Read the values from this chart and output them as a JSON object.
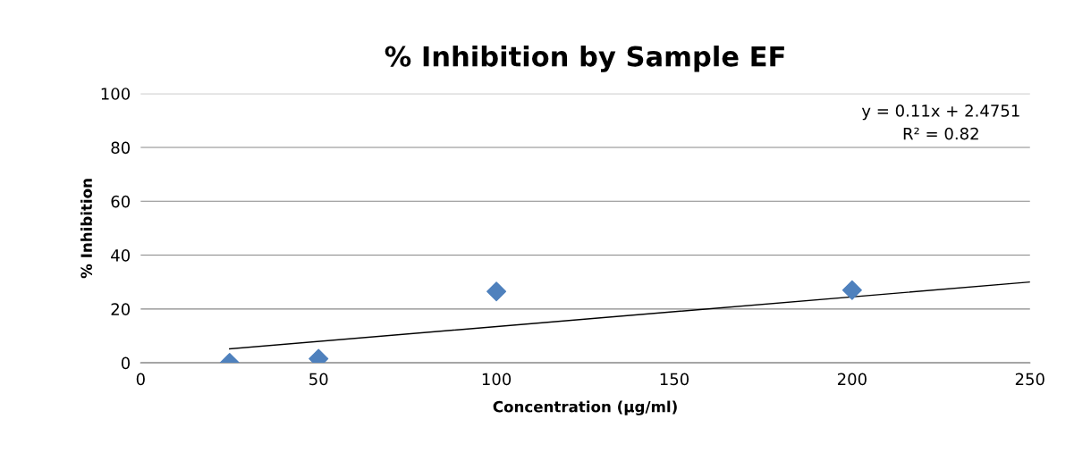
{
  "chart_data": {
    "type": "scatter",
    "title": "% Inhibition by Sample EF",
    "xlabel": "Concentration (µg/ml)",
    "ylabel": "% Inhibition",
    "series": [
      {
        "color": "#4f81bd",
        "marker": "diamond",
        "x": [
          25,
          50,
          100,
          200
        ],
        "values": [
          0,
          1.5,
          26.5,
          27
        ]
      },
      {
        "type": "line",
        "color": "#000000",
        "marker": "none",
        "x": [
          25,
          250
        ],
        "values": [
          5.2,
          30
        ]
      }
    ],
    "xlim": [
      0,
      250
    ],
    "xticks": [
      0,
      50,
      100,
      150,
      200,
      250
    ],
    "ylim": [
      0,
      100
    ],
    "yticks": [
      0,
      20,
      40,
      60,
      80,
      100
    ],
    "grid": "y",
    "legend": false,
    "annotations": [
      "y = 0.11x + 2.4751",
      "R² = 0.82"
    ]
  }
}
